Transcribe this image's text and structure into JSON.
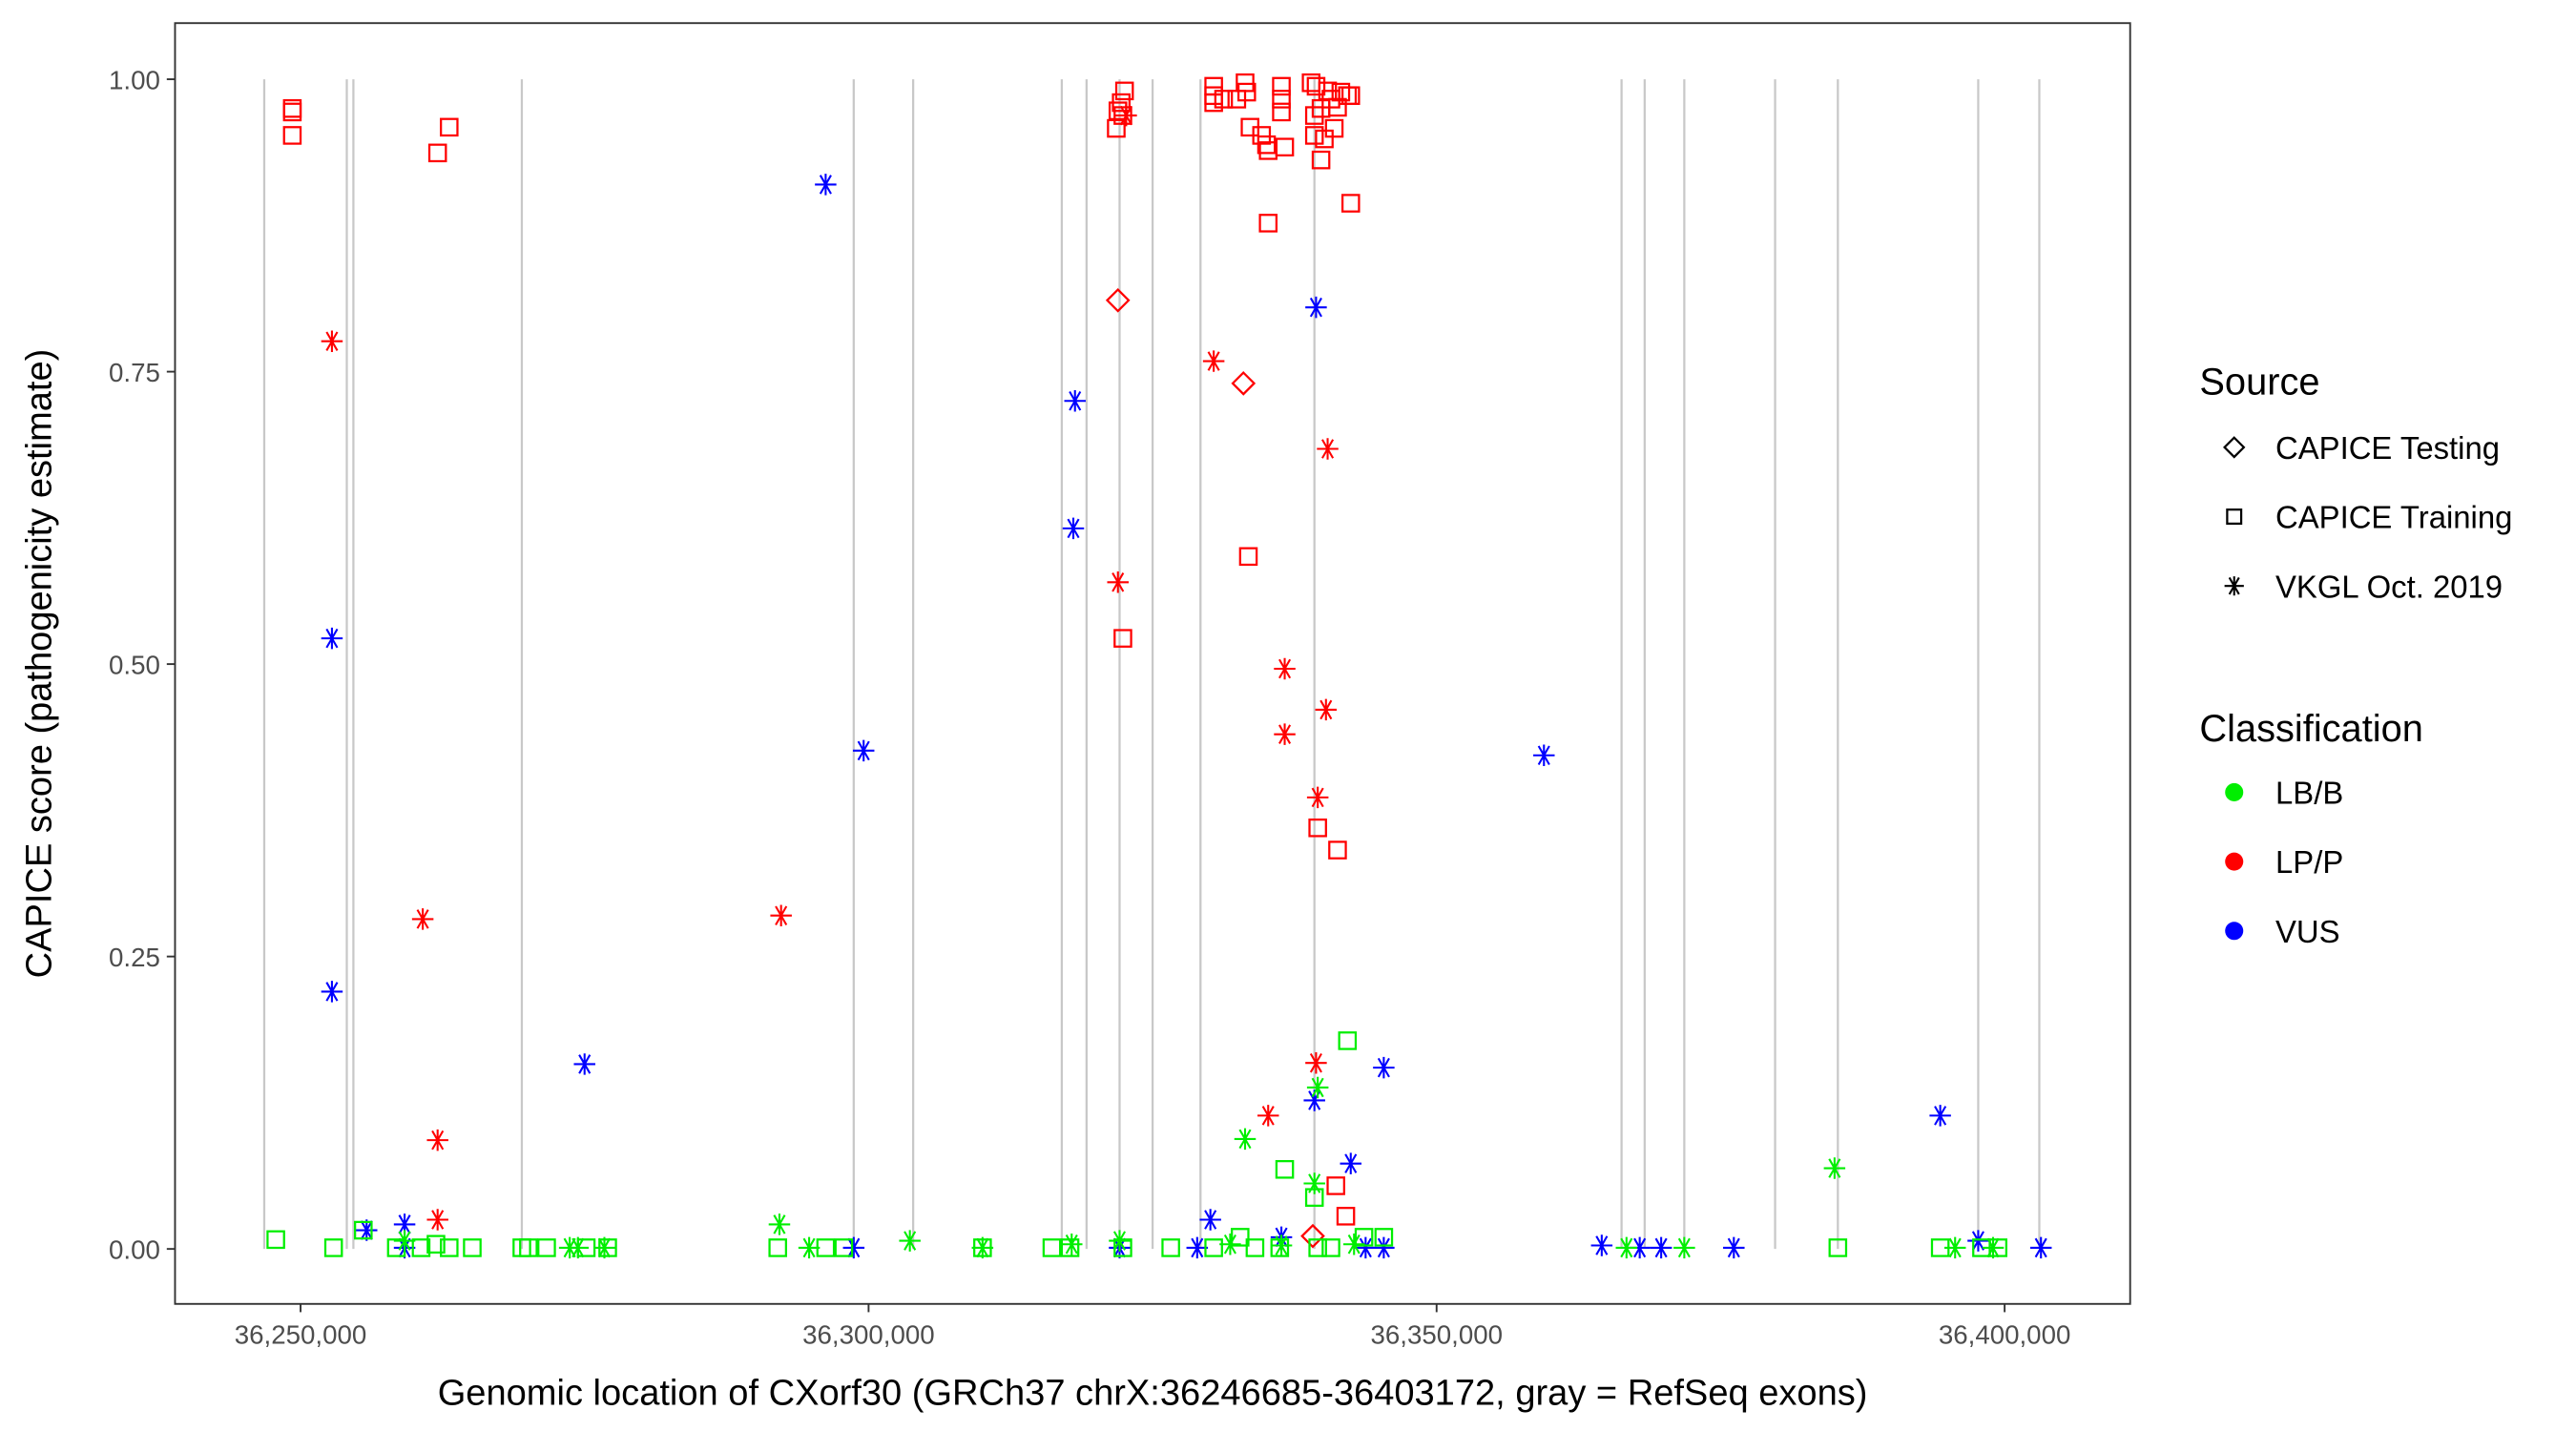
{
  "chart_data": {
    "type": "scatter",
    "xlabel": "Genomic location of CXorf30 (GRCh37 chrX:36246685-36403172, gray = RefSeq exons)",
    "ylabel": "CAPICE score (pathogenicity estimate)",
    "xlim": [
      36238950,
      36411050
    ],
    "ylim": [
      -0.047,
      1.048
    ],
    "x_ticks": [
      36250000,
      36300000,
      36350000,
      36400000
    ],
    "x_tick_labels": [
      "36,250,000",
      "36,300,000",
      "36,350,000",
      "36,400,000"
    ],
    "y_ticks": [
      0,
      0.25,
      0.5,
      0.75,
      1.0
    ],
    "y_tick_labels": [
      "0.00",
      "0.25",
      "0.50",
      "0.75",
      "1.00"
    ],
    "grid": false,
    "exon_lines": [
      36246802,
      36254070,
      36254651,
      36269477,
      36298692,
      36303925,
      36317006,
      36319187,
      36322094,
      36325001,
      36329216,
      36339245,
      36366280,
      36368315,
      36371803,
      36379798,
      36385321,
      36397676,
      36403054
    ],
    "legend": {
      "placement": "right",
      "source_title": "Source",
      "sources": [
        {
          "key": "T",
          "label": "CAPICE Testing",
          "shape": "diamond"
        },
        {
          "key": "S",
          "label": "CAPICE Training",
          "shape": "square"
        },
        {
          "key": "V",
          "label": "VKGL Oct. 2019",
          "shape": "asterisk"
        }
      ],
      "class_title": "Classification",
      "classes": [
        {
          "key": "LB/B",
          "label": "LB/B",
          "color": "#00ee00"
        },
        {
          "key": "LP/P",
          "label": "LP/P",
          "color": "#ff0000"
        },
        {
          "key": "VUS",
          "label": "VUS",
          "color": "#0000ff"
        }
      ]
    },
    "point_fields": [
      "position",
      "score",
      "source",
      "classification"
    ],
    "points": [
      [
        36249273,
        0.975,
        "S",
        "LP/P"
      ],
      [
        36249273,
        0.972,
        "S",
        "LP/P"
      ],
      [
        36249273,
        0.952,
        "S",
        "LP/P"
      ],
      [
        36262064,
        0.937,
        "S",
        "LP/P"
      ],
      [
        36263082,
        0.959,
        "S",
        "LP/P"
      ],
      [
        36321803,
        0.958,
        "S",
        "LP/P"
      ],
      [
        36322239,
        0.98,
        "S",
        "LP/P"
      ],
      [
        36322530,
        0.99,
        "S",
        "LP/P"
      ],
      [
        36322384,
        0.969,
        "S",
        "LP/P"
      ],
      [
        36321948,
        0.973,
        "S",
        "LP/P"
      ],
      [
        36330379,
        0.994,
        "S",
        "LP/P"
      ],
      [
        36330379,
        0.986,
        "S",
        "LP/P"
      ],
      [
        36330379,
        0.98,
        "S",
        "LP/P"
      ],
      [
        36331251,
        0.983,
        "S",
        "LP/P"
      ],
      [
        36333140,
        0.997,
        "S",
        "LP/P"
      ],
      [
        36333286,
        0.989,
        "S",
        "LP/P"
      ],
      [
        36333576,
        0.959,
        "S",
        "LP/P"
      ],
      [
        36332413,
        0.983,
        "S",
        "LP/P"
      ],
      [
        36334594,
        0.952,
        "S",
        "LP/P"
      ],
      [
        36335030,
        0.944,
        "S",
        "LP/P"
      ],
      [
        36335175,
        0.939,
        "S",
        "LP/P"
      ],
      [
        36335175,
        0.877,
        "S",
        "LP/P"
      ],
      [
        36336338,
        0.994,
        "S",
        "LP/P"
      ],
      [
        36336338,
        0.983,
        "S",
        "LP/P"
      ],
      [
        36336338,
        0.972,
        "S",
        "LP/P"
      ],
      [
        36336629,
        0.942,
        "S",
        "LP/P"
      ],
      [
        36338954,
        0.997,
        "S",
        "LP/P"
      ],
      [
        36339390,
        0.994,
        "S",
        "LP/P"
      ],
      [
        36339245,
        0.969,
        "S",
        "LP/P"
      ],
      [
        36339245,
        0.952,
        "S",
        "LP/P"
      ],
      [
        36339826,
        0.975,
        "S",
        "LP/P"
      ],
      [
        36339826,
        0.931,
        "S",
        "LP/P"
      ],
      [
        36340408,
        0.99,
        "S",
        "LP/P"
      ],
      [
        36340698,
        0.983,
        "S",
        "LP/P"
      ],
      [
        36341280,
        0.976,
        "S",
        "LP/P"
      ],
      [
        36341571,
        0.989,
        "S",
        "LP/P"
      ],
      [
        36342152,
        0.986,
        "S",
        "LP/P"
      ],
      [
        36342443,
        0.986,
        "S",
        "LP/P"
      ],
      [
        36342443,
        0.894,
        "S",
        "LP/P"
      ],
      [
        36340117,
        0.949,
        "S",
        "LP/P"
      ],
      [
        36340989,
        0.958,
        "S",
        "LP/P"
      ],
      [
        36333431,
        0.592,
        "S",
        "LP/P"
      ],
      [
        36322384,
        0.522,
        "S",
        "LP/P"
      ],
      [
        36339536,
        0.36,
        "S",
        "LP/P"
      ],
      [
        36341280,
        0.341,
        "S",
        "LP/P"
      ],
      [
        36341134,
        0.054,
        "S",
        "LP/P"
      ],
      [
        36342007,
        0.028,
        "S",
        "LP/P"
      ],
      [
        36321948,
        0.811,
        "T",
        "LP/P"
      ],
      [
        36332995,
        0.74,
        "T",
        "LP/P"
      ],
      [
        36339100,
        0.011,
        "T",
        "LP/P"
      ],
      [
        36252762,
        0.776,
        "V",
        "LP/P"
      ],
      [
        36260756,
        0.282,
        "V",
        "LP/P"
      ],
      [
        36262064,
        0.093,
        "V",
        "LP/P"
      ],
      [
        36262064,
        0.025,
        "V",
        "LP/P"
      ],
      [
        36292297,
        0.285,
        "V",
        "LP/P"
      ],
      [
        36321948,
        0.57,
        "V",
        "LP/P"
      ],
      [
        36322675,
        0.969,
        "V",
        "LP/P"
      ],
      [
        36330379,
        0.759,
        "V",
        "LP/P"
      ],
      [
        36340408,
        0.684,
        "V",
        "LP/P"
      ],
      [
        36336629,
        0.496,
        "V",
        "LP/P"
      ],
      [
        36336629,
        0.44,
        "V",
        "LP/P"
      ],
      [
        36340262,
        0.461,
        "V",
        "LP/P"
      ],
      [
        36339536,
        0.386,
        "V",
        "LP/P"
      ],
      [
        36339390,
        0.159,
        "V",
        "LP/P"
      ],
      [
        36335175,
        0.114,
        "V",
        "LP/P"
      ],
      [
        36296221,
        0.91,
        "V",
        "VUS"
      ],
      [
        36252762,
        0.522,
        "V",
        "VUS"
      ],
      [
        36252762,
        0.22,
        "V",
        "VUS"
      ],
      [
        36275000,
        0.158,
        "V",
        "VUS"
      ],
      [
        36299564,
        0.426,
        "V",
        "VUS"
      ],
      [
        36318169,
        0.725,
        "V",
        "VUS"
      ],
      [
        36318024,
        0.616,
        "V",
        "VUS"
      ],
      [
        36339390,
        0.805,
        "V",
        "VUS"
      ],
      [
        36359449,
        0.422,
        "V",
        "VUS"
      ],
      [
        36255814,
        0.016,
        "V",
        "VUS"
      ],
      [
        36259157,
        0.021,
        "V",
        "VUS"
      ],
      [
        36259157,
        0.001,
        "V",
        "VUS"
      ],
      [
        36298692,
        0.001,
        "V",
        "VUS"
      ],
      [
        36322094,
        0.001,
        "V",
        "VUS"
      ],
      [
        36330088,
        0.025,
        "V",
        "VUS"
      ],
      [
        36328925,
        0.001,
        "V",
        "VUS"
      ],
      [
        36336338,
        0.01,
        "V",
        "VUS"
      ],
      [
        36339245,
        0.127,
        "V",
        "VUS"
      ],
      [
        36342443,
        0.073,
        "V",
        "VUS"
      ],
      [
        36345350,
        0.155,
        "V",
        "VUS"
      ],
      [
        36345350,
        0.001,
        "V",
        "VUS"
      ],
      [
        36343751,
        0.001,
        "V",
        "VUS"
      ],
      [
        36364536,
        0.003,
        "V",
        "VUS"
      ],
      [
        36367879,
        0.001,
        "V",
        "VUS"
      ],
      [
        36369768,
        0.001,
        "V",
        "VUS"
      ],
      [
        36376164,
        0.001,
        "V",
        "VUS"
      ],
      [
        36394333,
        0.114,
        "V",
        "VUS"
      ],
      [
        36397676,
        0.007,
        "V",
        "VUS"
      ],
      [
        36403199,
        0.001,
        "V",
        "VUS"
      ],
      [
        36292152,
        0.021,
        "V",
        "LB/B"
      ],
      [
        36294768,
        0.001,
        "V",
        "LB/B"
      ],
      [
        36303634,
        0.007,
        "V",
        "LB/B"
      ],
      [
        36310030,
        0.001,
        "V",
        "LB/B"
      ],
      [
        36317878,
        0.004,
        "V",
        "LB/B"
      ],
      [
        36322094,
        0.007,
        "V",
        "LB/B"
      ],
      [
        36333140,
        0.094,
        "V",
        "LB/B"
      ],
      [
        36339536,
        0.138,
        "V",
        "LB/B"
      ],
      [
        36339245,
        0.056,
        "V",
        "LB/B"
      ],
      [
        36336338,
        0.003,
        "V",
        "LB/B"
      ],
      [
        36331832,
        0.004,
        "V",
        "LB/B"
      ],
      [
        36371803,
        0.001,
        "V",
        "LB/B"
      ],
      [
        36385030,
        0.069,
        "V",
        "LB/B"
      ],
      [
        36395641,
        0.001,
        "V",
        "LB/B"
      ],
      [
        36398984,
        0.001,
        "V",
        "LB/B"
      ],
      [
        36273692,
        0.001,
        "V",
        "LB/B"
      ],
      [
        36274419,
        0.001,
        "V",
        "LB/B"
      ],
      [
        36276744,
        0.001,
        "V",
        "LB/B"
      ],
      [
        36366716,
        0.001,
        "V",
        "LB/B"
      ],
      [
        36259157,
        0.007,
        "V",
        "LB/B"
      ],
      [
        36342733,
        0.004,
        "V",
        "LB/B"
      ],
      [
        36247820,
        0.008,
        "S",
        "LB/B"
      ],
      [
        36252907,
        0.001,
        "S",
        "LB/B"
      ],
      [
        36255523,
        0.016,
        "S",
        "LB/B"
      ],
      [
        36258430,
        0.001,
        "S",
        "LB/B"
      ],
      [
        36260611,
        0.001,
        "S",
        "LB/B"
      ],
      [
        36261919,
        0.004,
        "S",
        "LB/B"
      ],
      [
        36263082,
        0.001,
        "S",
        "LB/B"
      ],
      [
        36265116,
        0.001,
        "S",
        "LB/B"
      ],
      [
        36269477,
        0.001,
        "S",
        "LB/B"
      ],
      [
        36270058,
        0.001,
        "S",
        "LB/B"
      ],
      [
        36271657,
        0.001,
        "S",
        "LB/B"
      ],
      [
        36275146,
        0.001,
        "S",
        "LB/B"
      ],
      [
        36277035,
        0.001,
        "S",
        "LB/B"
      ],
      [
        36292006,
        0.001,
        "S",
        "LB/B"
      ],
      [
        36296221,
        0.001,
        "S",
        "LB/B"
      ],
      [
        36297820,
        0.001,
        "S",
        "LB/B"
      ],
      [
        36310030,
        0.001,
        "S",
        "LB/B"
      ],
      [
        36316134,
        0.001,
        "S",
        "LB/B"
      ],
      [
        36317733,
        0.001,
        "S",
        "LB/B"
      ],
      [
        36322384,
        0.001,
        "S",
        "LB/B"
      ],
      [
        36326599,
        0.001,
        "S",
        "LB/B"
      ],
      [
        36330379,
        0.001,
        "S",
        "LB/B"
      ],
      [
        36332704,
        0.01,
        "S",
        "LB/B"
      ],
      [
        36334012,
        0.001,
        "S",
        "LB/B"
      ],
      [
        36336193,
        0.001,
        "S",
        "LB/B"
      ],
      [
        36336629,
        0.068,
        "S",
        "LB/B"
      ],
      [
        36339245,
        0.044,
        "S",
        "LB/B"
      ],
      [
        36339536,
        0.001,
        "S",
        "LB/B"
      ],
      [
        36340698,
        0.001,
        "S",
        "LB/B"
      ],
      [
        36342152,
        0.178,
        "S",
        "LB/B"
      ],
      [
        36343605,
        0.01,
        "S",
        "LB/B"
      ],
      [
        36345350,
        0.01,
        "S",
        "LB/B"
      ],
      [
        36385321,
        0.001,
        "S",
        "LB/B"
      ],
      [
        36394333,
        0.001,
        "S",
        "LB/B"
      ],
      [
        36397966,
        0.001,
        "S",
        "LB/B"
      ],
      [
        36399420,
        0.001,
        "S",
        "LB/B"
      ]
    ]
  }
}
